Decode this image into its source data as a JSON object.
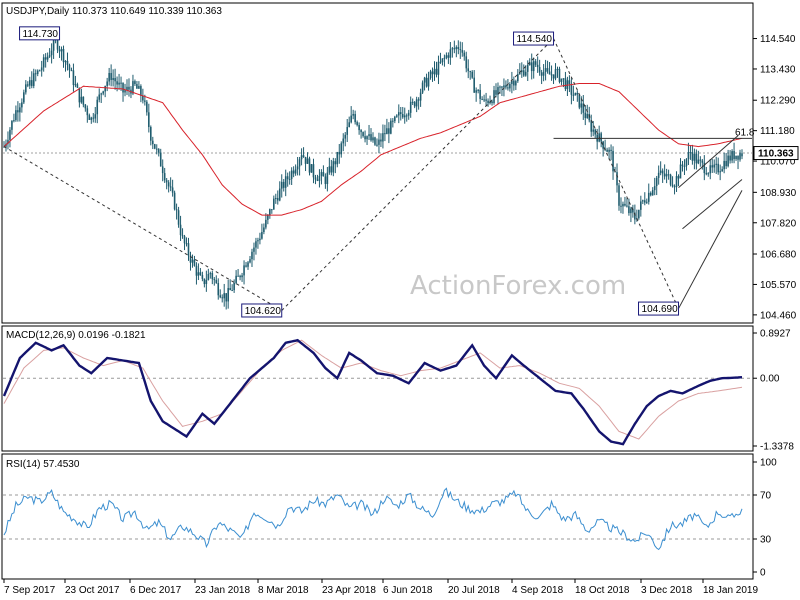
{
  "watermark": "ActionForex.com",
  "colors": {
    "candle": "#1f5c6e",
    "sma": "#d8222a",
    "macd": "#14146e",
    "signal": "#d9a0a0",
    "rsi": "#3c8fd0",
    "grid": "#9a9a9a",
    "text": "#000000",
    "label_border": "#1a1a7a"
  },
  "x_labels": [
    "7 Sep 2017",
    "23 Oct 2017",
    "6 Dec 2017",
    "23 Jan 2018",
    "8 Mar 2018",
    "23 Apr 2018",
    "6 Jun 2018",
    "20 Jul 2018",
    "4 Sep 2018",
    "18 Oct 2018",
    "3 Dec 2018",
    "18 Jan 2019"
  ],
  "chart_data": [
    {
      "type": "candlestick",
      "title": "USDJPY,Daily  110.373 110.649 110.339 110.363",
      "y_ticks": [
        "114.540",
        "113.430",
        "112.290",
        "111.180",
        "110.070",
        "108.930",
        "107.820",
        "106.680",
        "105.570",
        "104.460"
      ],
      "ylim": [
        104.2,
        115.8
      ],
      "last_price": "110.363",
      "annotations": [
        "114.730",
        "114.540",
        "104.620",
        "104.690",
        "61.8"
      ],
      "series": [
        {
          "name": "price_close",
          "x": [
            0,
            6,
            12,
            18,
            22,
            26,
            32,
            38,
            44,
            50,
            54,
            60,
            66,
            70,
            74,
            80,
            86,
            90,
            96,
            100,
            104,
            108,
            112,
            118,
            122,
            128,
            132,
            136,
            140,
            146,
            150,
            156,
            162,
            168,
            172,
            176,
            180,
            184,
            188,
            192,
            196,
            200,
            206,
            212,
            218,
            224,
            230,
            236,
            242,
            246,
            250,
            254,
            258,
            262,
            268,
            274,
            278,
            282,
            286,
            290,
            296,
            302,
            306,
            310,
            314,
            318,
            322,
            326,
            330,
            334,
            338,
            342,
            346,
            350,
            356,
            360,
            364,
            368,
            372
          ],
          "y": [
            110.6,
            111.9,
            112.8,
            113.4,
            113.9,
            114.5,
            113.6,
            112.4,
            111.6,
            112.8,
            113.2,
            112.6,
            112.8,
            112.4,
            111.0,
            109.8,
            108.5,
            107.2,
            106.2,
            105.6,
            106.0,
            105.4,
            105.1,
            105.8,
            106.4,
            107.2,
            107.8,
            108.6,
            109.1,
            109.8,
            110.4,
            109.6,
            109.4,
            110.2,
            111.0,
            111.8,
            111.2,
            110.9,
            110.6,
            111.1,
            111.4,
            111.8,
            112.1,
            112.9,
            113.4,
            114.0,
            114.3,
            112.9,
            112.2,
            112.4,
            112.6,
            112.9,
            113.1,
            113.4,
            113.6,
            113.2,
            113.3,
            113.0,
            112.6,
            112.2,
            111.3,
            110.7,
            110.3,
            108.6,
            108.3,
            108.0,
            108.6,
            109.0,
            109.6,
            109.5,
            109.3,
            109.9,
            110.4,
            110.0,
            109.7,
            109.8,
            110.1,
            110.3,
            110.36
          ]
        },
        {
          "name": "sma",
          "x": [
            0,
            20,
            40,
            60,
            80,
            90,
            100,
            110,
            120,
            130,
            140,
            150,
            160,
            170,
            180,
            190,
            200,
            210,
            220,
            230,
            240,
            250,
            260,
            270,
            280,
            290,
            300,
            310,
            320,
            330,
            340,
            350,
            360,
            372
          ],
          "y": [
            110.6,
            111.9,
            112.8,
            112.7,
            112.2,
            111.2,
            110.3,
            109.2,
            108.5,
            108.1,
            108.1,
            108.3,
            108.6,
            109.2,
            109.7,
            110.3,
            110.6,
            110.9,
            111.1,
            111.4,
            111.7,
            112.2,
            112.4,
            112.6,
            112.8,
            112.9,
            112.9,
            112.6,
            111.9,
            111.2,
            110.7,
            110.6,
            110.7,
            110.9
          ]
        }
      ]
    },
    {
      "type": "line",
      "title": "MACD(12,26,9) 0.0196 -0.1821",
      "y_ticks": [
        "0.8927",
        "0.00",
        "-1.3378"
      ],
      "series": [
        {
          "name": "macd",
          "x": [
            0,
            8,
            16,
            24,
            30,
            38,
            44,
            52,
            60,
            68,
            74,
            80,
            86,
            92,
            100,
            106,
            112,
            118,
            124,
            130,
            136,
            142,
            148,
            156,
            162,
            168,
            174,
            180,
            188,
            196,
            204,
            212,
            220,
            228,
            236,
            242,
            248,
            256,
            262,
            270,
            278,
            286,
            292,
            300,
            306,
            312,
            318,
            324,
            330,
            336,
            342,
            350,
            356,
            362,
            368,
            372
          ],
          "y": [
            -0.35,
            0.4,
            0.7,
            0.55,
            0.65,
            0.25,
            0.1,
            0.4,
            0.35,
            0.3,
            -0.45,
            -0.85,
            -1.0,
            -1.15,
            -0.7,
            -0.9,
            -0.6,
            -0.3,
            0.0,
            0.2,
            0.4,
            0.7,
            0.75,
            0.5,
            0.2,
            0.0,
            0.5,
            0.35,
            0.1,
            0.05,
            -0.1,
            0.3,
            0.15,
            0.25,
            0.65,
            0.25,
            0.0,
            0.45,
            0.25,
            0.0,
            -0.25,
            -0.3,
            -0.6,
            -1.05,
            -1.25,
            -1.3,
            -0.9,
            -0.55,
            -0.35,
            -0.25,
            -0.3,
            -0.15,
            -0.05,
            0.0,
            0.01,
            0.02
          ]
        },
        {
          "name": "signal",
          "x": [
            0,
            10,
            20,
            30,
            40,
            50,
            60,
            70,
            80,
            90,
            100,
            110,
            120,
            130,
            140,
            150,
            160,
            170,
            180,
            190,
            200,
            210,
            220,
            230,
            240,
            250,
            260,
            270,
            280,
            290,
            300,
            310,
            320,
            330,
            340,
            350,
            360,
            372
          ],
          "y": [
            -0.5,
            0.2,
            0.55,
            0.6,
            0.4,
            0.25,
            0.35,
            0.2,
            -0.45,
            -0.95,
            -0.85,
            -0.7,
            -0.25,
            0.2,
            0.55,
            0.75,
            0.45,
            0.2,
            0.3,
            0.15,
            0.05,
            0.15,
            0.2,
            0.35,
            0.5,
            0.2,
            0.25,
            0.1,
            -0.1,
            -0.2,
            -0.55,
            -1.05,
            -1.2,
            -0.75,
            -0.45,
            -0.3,
            -0.25,
            -0.18
          ]
        }
      ]
    },
    {
      "type": "line",
      "title": "RSI(14) 57.4530",
      "y_ticks": [
        "100",
        "70",
        "30",
        "0"
      ],
      "ylim": [
        0,
        100
      ],
      "series": [
        {
          "name": "rsi",
          "x": [
            0,
            6,
            12,
            18,
            24,
            30,
            36,
            42,
            48,
            54,
            60,
            66,
            72,
            78,
            84,
            90,
            96,
            102,
            108,
            114,
            120,
            126,
            132,
            138,
            144,
            150,
            156,
            162,
            168,
            174,
            180,
            186,
            192,
            198,
            204,
            210,
            216,
            222,
            228,
            234,
            240,
            246,
            252,
            258,
            264,
            270,
            276,
            282,
            288,
            294,
            300,
            306,
            312,
            318,
            324,
            330,
            336,
            342,
            348,
            354,
            360,
            366,
            372
          ],
          "y": [
            35,
            60,
            68,
            64,
            72,
            55,
            48,
            40,
            58,
            62,
            48,
            55,
            38,
            45,
            30,
            42,
            35,
            25,
            45,
            38,
            30,
            55,
            50,
            42,
            60,
            55,
            65,
            62,
            70,
            58,
            62,
            52,
            68,
            60,
            70,
            58,
            52,
            74,
            65,
            58,
            55,
            62,
            65,
            72,
            55,
            50,
            62,
            48,
            52,
            38,
            46,
            40,
            35,
            28,
            36,
            22,
            42,
            44,
            52,
            40,
            55,
            48,
            57.45
          ]
        }
      ]
    }
  ]
}
